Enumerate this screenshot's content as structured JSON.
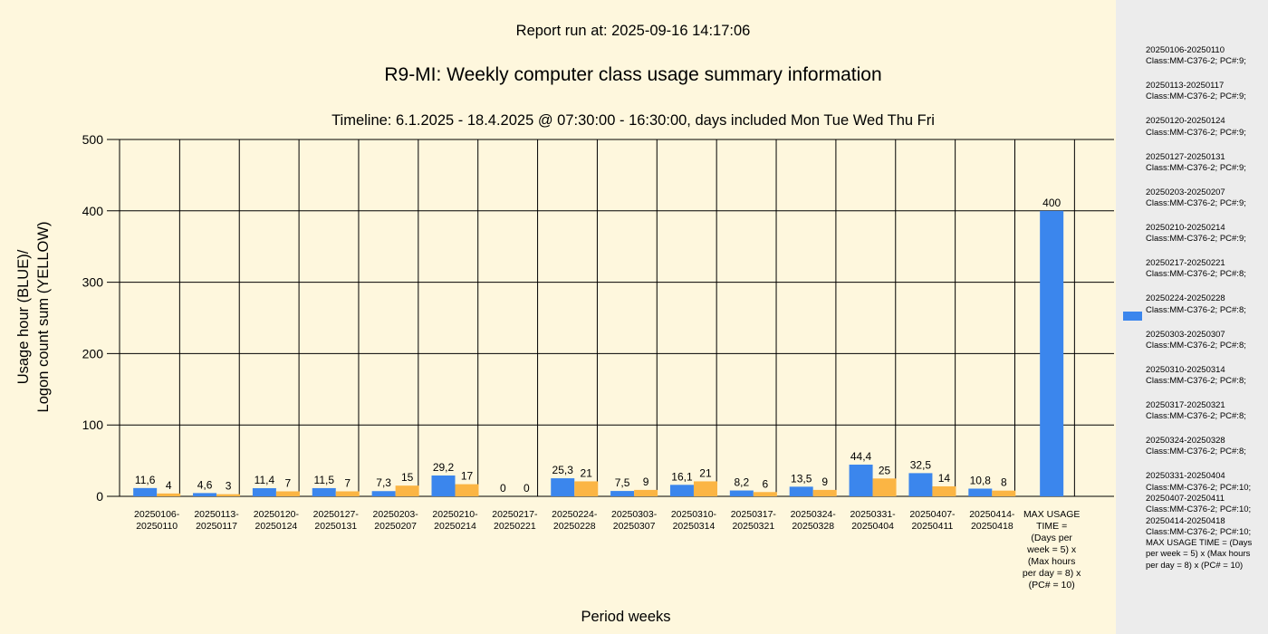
{
  "header": {
    "report_run": "Report run at: 2025-09-16 14:17:06"
  },
  "chart_data": {
    "type": "bar",
    "title": "R9-MI: Weekly computer class usage summary information",
    "subtitle": "Timeline:  6.1.2025  - 18.4.2025  @  07:30:00 -  16:30:00, days included Mon Tue Wed Thu Fri",
    "xlabel": "Period weeks",
    "ylabel_line1": "Usage hour (BLUE)/",
    "ylabel_line2": "Logon count sum (YELLOW)",
    "ylim": [
      0,
      500
    ],
    "yticks": [
      0,
      100,
      200,
      300,
      400,
      500
    ],
    "grid": true,
    "legend_position": "right",
    "categories": [
      [
        "20250106-",
        "20250110"
      ],
      [
        "20250113-",
        "20250117"
      ],
      [
        "20250120-",
        "20250124"
      ],
      [
        "20250127-",
        "20250131"
      ],
      [
        "20250203-",
        "20250207"
      ],
      [
        "20250210-",
        "20250214"
      ],
      [
        "20250217-",
        "20250221"
      ],
      [
        "20250224-",
        "20250228"
      ],
      [
        "20250303-",
        "20250307"
      ],
      [
        "20250310-",
        "20250314"
      ],
      [
        "20250317-",
        "20250321"
      ],
      [
        "20250324-",
        "20250328"
      ],
      [
        "20250331-",
        "20250404"
      ],
      [
        "20250407-",
        "20250411"
      ],
      [
        "20250414-",
        "20250418"
      ],
      [
        "MAX USAGE",
        "TIME =",
        "(Days per",
        "week = 5) x",
        "(Max hours",
        "per day = 8) x",
        "(PC# = 10)"
      ]
    ],
    "series": [
      {
        "color": "#3b86ed",
        "values": [
          11.6,
          4.6,
          11.4,
          11.5,
          7.3,
          29.2,
          0,
          25.3,
          7.5,
          16.1,
          8.2,
          13.5,
          44.4,
          32.5,
          10.8,
          400
        ],
        "labels": [
          "11,6",
          "4,6",
          "11,4",
          "11,5",
          "7,3",
          "29,2",
          "0",
          "25,3",
          "7,5",
          "16,1",
          "8,2",
          "13,5",
          "44,4",
          "32,5",
          "10,8",
          "400"
        ]
      },
      {
        "color": "#fbb544",
        "values": [
          4,
          3,
          7,
          7,
          15,
          17,
          0,
          21,
          9,
          21,
          6,
          9,
          25,
          14,
          8,
          null
        ],
        "labels": [
          "4",
          "3",
          "7",
          "7",
          "15",
          "17",
          "0",
          "21",
          "9",
          "21",
          "6",
          "9",
          "25",
          "14",
          "8",
          ""
        ]
      }
    ]
  },
  "legend": {
    "swatch_color": "#3b86ed",
    "entries": [
      {
        "period": "20250106-20250110",
        "info": "Class:MM-C376-2; PC#:9;"
      },
      {
        "period": "20250113-20250117",
        "info": "Class:MM-C376-2; PC#:9;"
      },
      {
        "period": "20250120-20250124",
        "info": "Class:MM-C376-2; PC#:9;"
      },
      {
        "period": "20250127-20250131",
        "info": "Class:MM-C376-2; PC#:9;"
      },
      {
        "period": "20250203-20250207",
        "info": "Class:MM-C376-2; PC#:9;"
      },
      {
        "period": "20250210-20250214",
        "info": "Class:MM-C376-2; PC#:9;"
      },
      {
        "period": "20250217-20250221",
        "info": "Class:MM-C376-2; PC#:8;"
      },
      {
        "period": "20250224-20250228",
        "info": "Class:MM-C376-2; PC#:8;"
      },
      {
        "period": "20250303-20250307",
        "info": "Class:MM-C376-2; PC#:8;"
      },
      {
        "period": "20250310-20250314",
        "info": "Class:MM-C376-2; PC#:8;"
      },
      {
        "period": "20250317-20250321",
        "info": "Class:MM-C376-2; PC#:8;"
      },
      {
        "period": "20250324-20250328",
        "info": "Class:MM-C376-2; PC#:8;"
      },
      {
        "period": "20250331-20250404",
        "info": "Class:MM-C376-2; PC#:10;"
      },
      {
        "period": "20250407-20250411",
        "info": "Class:MM-C376-2; PC#:10;"
      },
      {
        "period": "20250414-20250418",
        "info": "Class:MM-C376-2; PC#:10;"
      }
    ],
    "max_note": "MAX USAGE TIME = (Days per week = 5) x (Max hours per day = 8) x (PC# = 10)"
  }
}
